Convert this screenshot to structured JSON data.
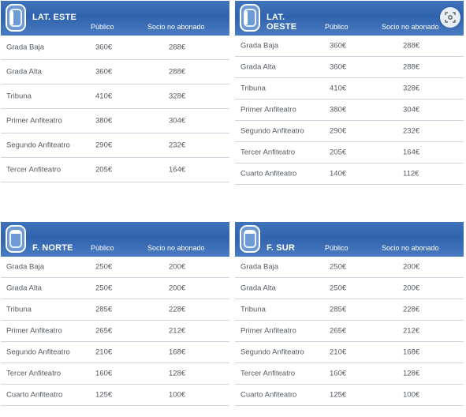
{
  "columns": {
    "publico": "Público",
    "socio": "Socio no abonado"
  },
  "panels": [
    {
      "name": "LAT. ESTE",
      "rows": [
        {
          "zona": "Grada Baja",
          "publico": "360€",
          "socio": "288€"
        },
        {
          "zona": "Grada Alta",
          "publico": "360€",
          "socio": "288€"
        },
        {
          "zona": "Tribuna",
          "publico": "410€",
          "socio": "328€"
        },
        {
          "zona": "Primer Anfiteatro",
          "publico": "380€",
          "socio": "304€"
        },
        {
          "zona": "Segundo Anfiteatro",
          "publico": "290€",
          "socio": "232€"
        },
        {
          "zona": "Tercer Anfiteatro",
          "publico": "205€",
          "socio": "164€"
        }
      ]
    },
    {
      "name": "LAT. OESTE",
      "rows": [
        {
          "zona": "Grada Baja",
          "publico": "360€",
          "socio": "288€"
        },
        {
          "zona": "Grada Alta",
          "publico": "360€",
          "socio": "288€"
        },
        {
          "zona": "Tribuna",
          "publico": "410€",
          "socio": "328€"
        },
        {
          "zona": "Primer Anfiteatro",
          "publico": "380€",
          "socio": "304€"
        },
        {
          "zona": "Segundo Anfiteatro",
          "publico": "290€",
          "socio": "232€"
        },
        {
          "zona": "Tercer Anfiteatro",
          "publico": "205€",
          "socio": "164€"
        },
        {
          "zona": "Cuarto Anfiteatro",
          "publico": "140€",
          "socio": "112€"
        }
      ]
    },
    {
      "name": "F. NORTE",
      "rows": [
        {
          "zona": "Grada Baja",
          "publico": "250€",
          "socio": "200€"
        },
        {
          "zona": "Grada Alta",
          "publico": "250€",
          "socio": "200€"
        },
        {
          "zona": "Tribuna",
          "publico": "285€",
          "socio": "228€"
        },
        {
          "zona": "Primer Anfiteatro",
          "publico": "265€",
          "socio": "212€"
        },
        {
          "zona": "Segundo Anfiteatro",
          "publico": "210€",
          "socio": "168€"
        },
        {
          "zona": "Tercer Anfiteatro",
          "publico": "160€",
          "socio": "128€"
        },
        {
          "zona": "Cuarto Anfiteatro",
          "publico": "125€",
          "socio": "100€"
        }
      ]
    },
    {
      "name": "F. SUR",
      "rows": [
        {
          "zona": "Grada Baja",
          "publico": "250€",
          "socio": "200€"
        },
        {
          "zona": "Grada Alta",
          "publico": "250€",
          "socio": "200€"
        },
        {
          "zona": "Tribuna",
          "publico": "285€",
          "socio": "228€"
        },
        {
          "zona": "Primer Anfiteatro",
          "publico": "265€",
          "socio": "212€"
        },
        {
          "zona": "Segundo Anfiteatro",
          "publico": "210€",
          "socio": "168€"
        },
        {
          "zona": "Tercer Anfiteatro",
          "publico": "160€",
          "socio": "128€"
        },
        {
          "zona": "Cuarto Anfiteatro",
          "publico": "125€",
          "socio": "100€"
        }
      ]
    }
  ],
  "icons": {
    "stadium": "stadium-icon",
    "lens": "visual-search-icon"
  },
  "colors": {
    "header": "#2f63ad",
    "divider": "#cfd6df",
    "text": "#555b62"
  }
}
